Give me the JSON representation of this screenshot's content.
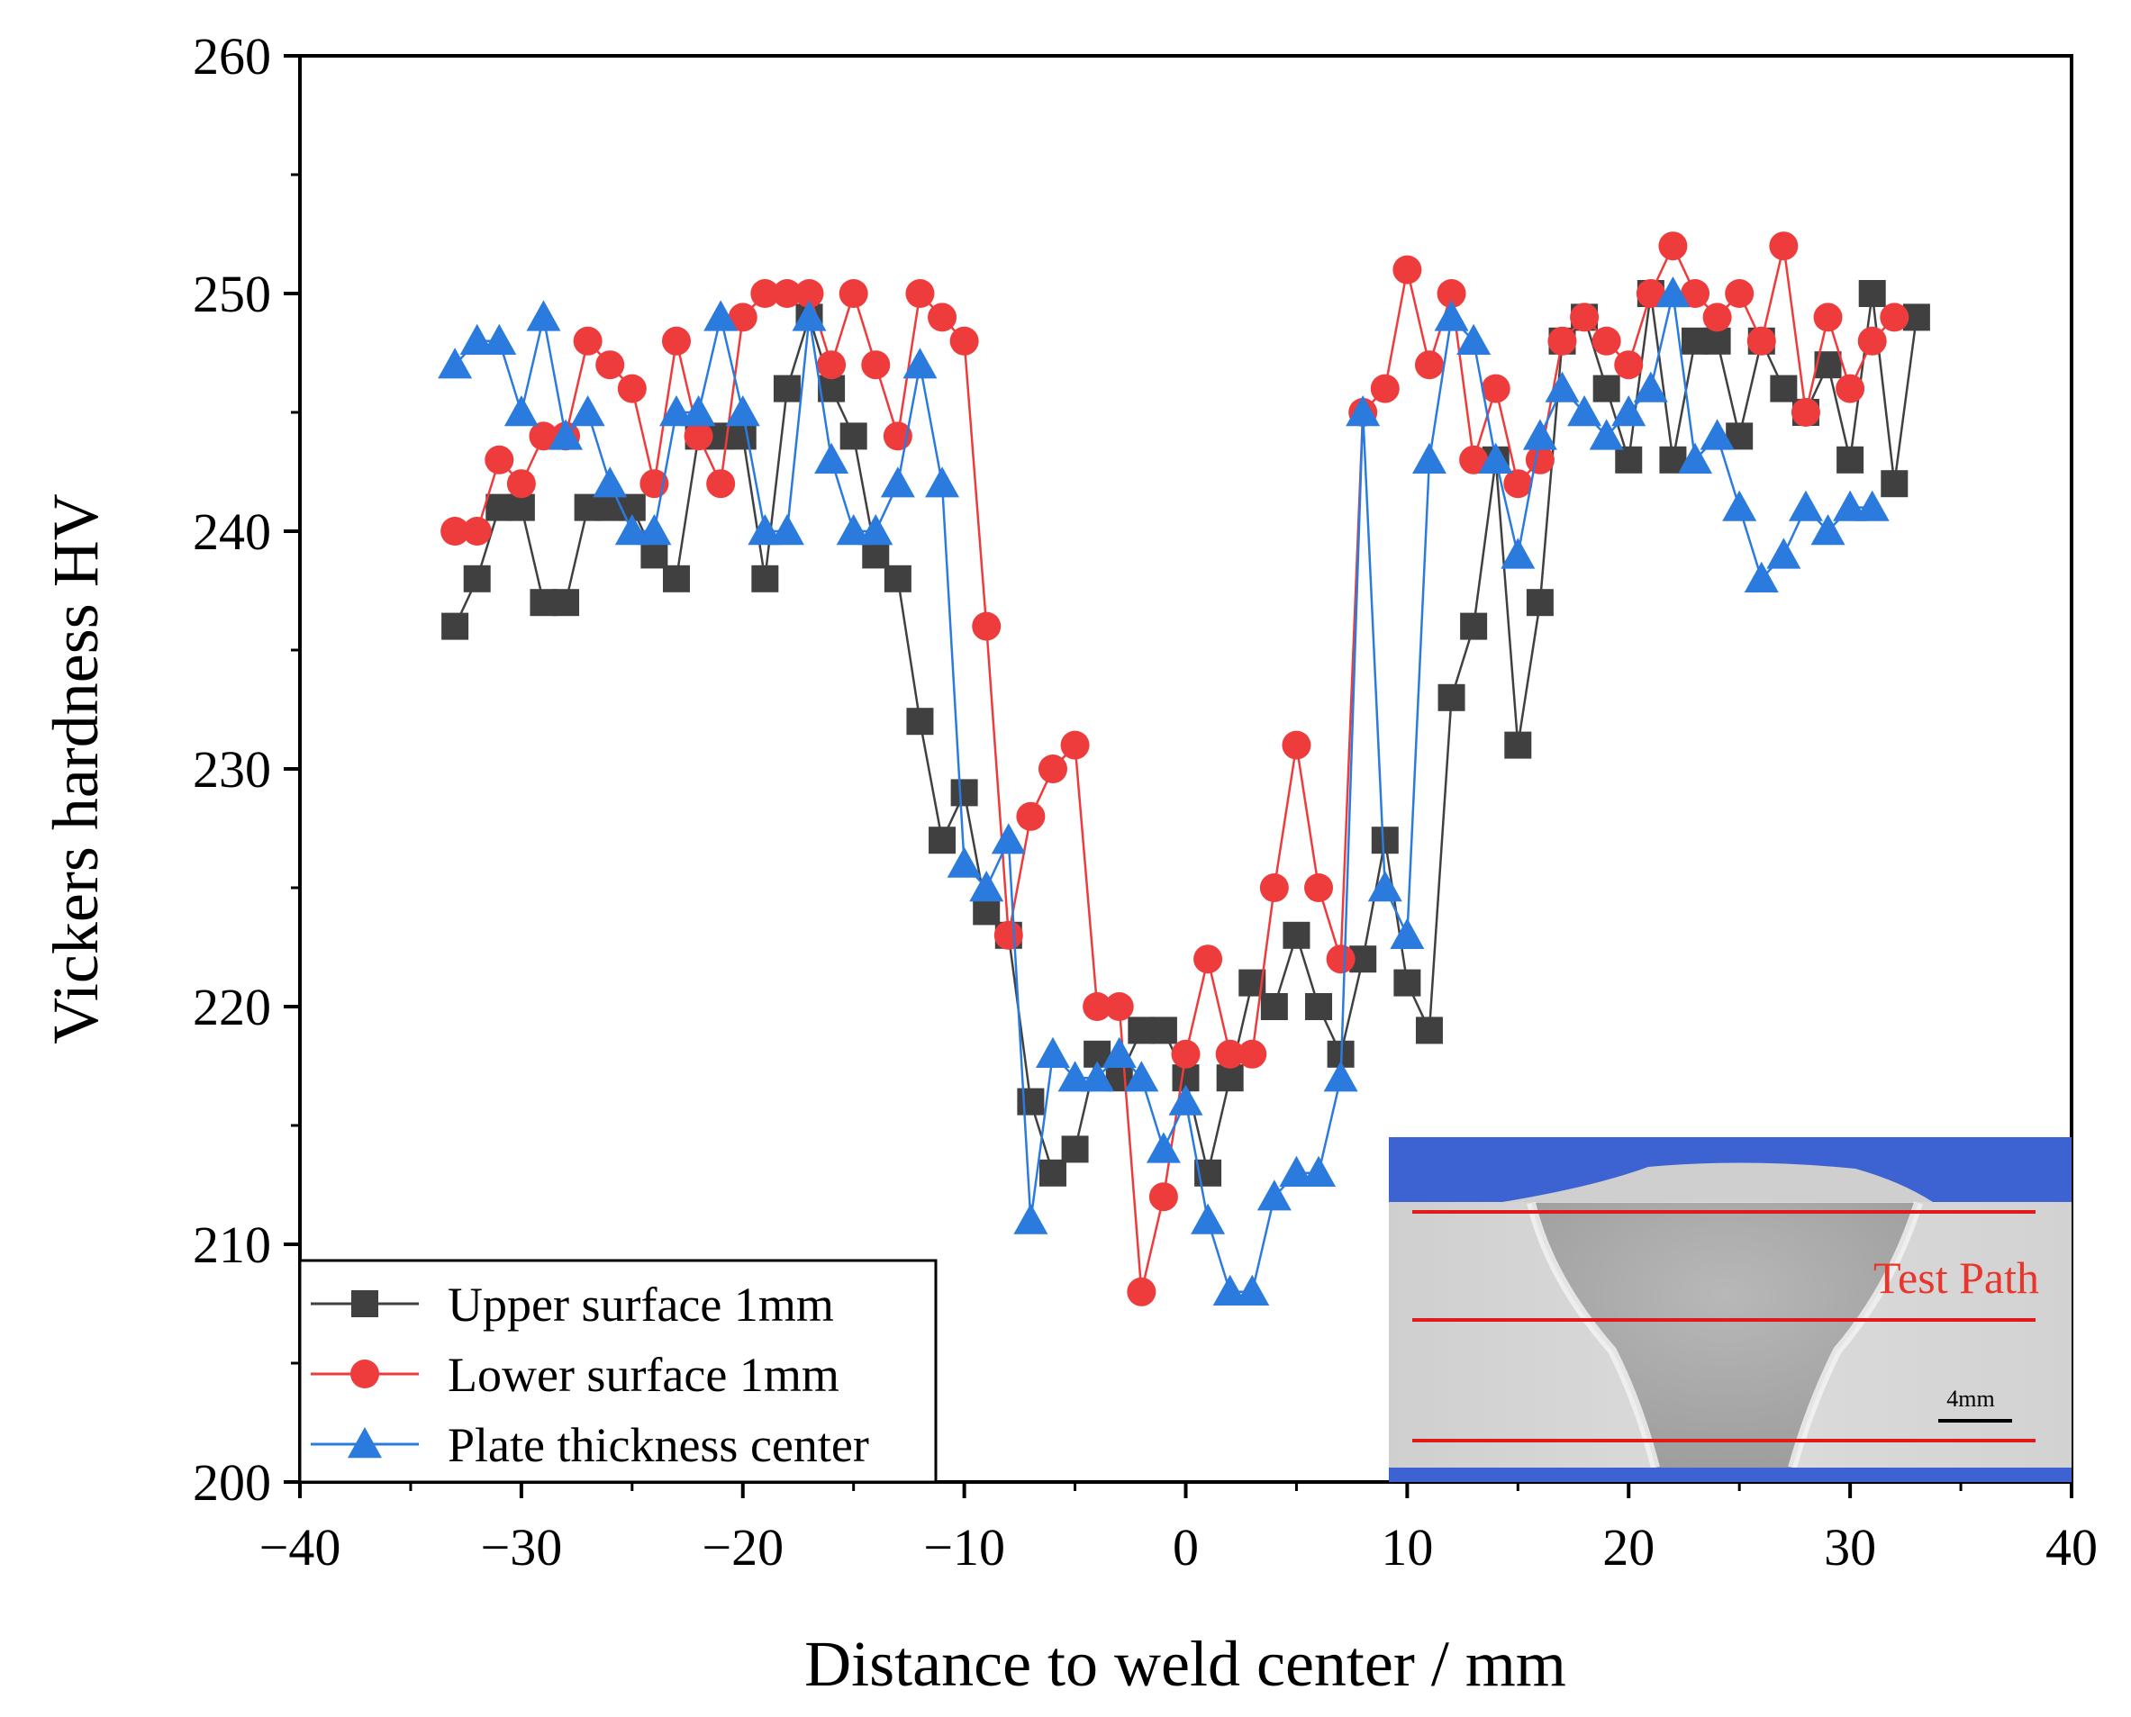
{
  "chart_data": {
    "type": "line",
    "xlabel": "Distance to weld center / mm",
    "ylabel": "Vickers hardness HV",
    "xlim": [
      -40,
      40
    ],
    "ylim": [
      200,
      260
    ],
    "xticks": [
      -40,
      -30,
      -20,
      -10,
      0,
      10,
      20,
      30,
      40
    ],
    "yticks": [
      200,
      210,
      220,
      230,
      240,
      250,
      260
    ],
    "xtick_labels": [
      "−40",
      "−30",
      "−20",
      "−10",
      "0",
      "10",
      "20",
      "30",
      "40"
    ],
    "ytick_labels": [
      "200",
      "210",
      "220",
      "230",
      "240",
      "250",
      "260"
    ],
    "grid": false,
    "legend_position": "bottom-left",
    "series": [
      {
        "name": "Upper surface 1mm",
        "color": "#404040",
        "marker": "square",
        "x": [
          -33,
          -32,
          -31,
          -30,
          -29,
          -28,
          -27,
          -26,
          -25,
          -24,
          -23,
          -22,
          -21,
          -20,
          -19,
          -18,
          -17,
          -16,
          -15,
          -14,
          -13,
          -12,
          -11,
          -10,
          -9,
          -8,
          -7,
          -6,
          -5,
          -4,
          -3,
          -2,
          -1,
          0,
          1,
          2,
          3,
          4,
          5,
          6,
          7,
          8,
          9,
          10,
          11,
          12,
          13,
          14,
          15,
          16,
          17,
          18,
          19,
          20,
          21,
          22,
          23,
          24,
          25,
          26,
          27,
          28,
          29,
          30,
          31,
          32,
          33
        ],
        "y": [
          236,
          238,
          241,
          241,
          237,
          237,
          241,
          241,
          241,
          239,
          238,
          244,
          244,
          244,
          238,
          246,
          249,
          246,
          244,
          239,
          238,
          232,
          227,
          229,
          224,
          223,
          216,
          213,
          214,
          218,
          217,
          219,
          219,
          217,
          213,
          217,
          221,
          220,
          223,
          220,
          218,
          222,
          227,
          221,
          219,
          233,
          236,
          243,
          231,
          237,
          248,
          249,
          246,
          243,
          250,
          243,
          248,
          248,
          244,
          248,
          246,
          245,
          247,
          243,
          250,
          242,
          249
        ]
      },
      {
        "name": "Lower surface 1mm",
        "color": "#ee3b3b",
        "marker": "circle",
        "x": [
          -33,
          -32,
          -31,
          -30,
          -29,
          -28,
          -27,
          -26,
          -25,
          -24,
          -23,
          -22,
          -21,
          -20,
          -19,
          -18,
          -17,
          -16,
          -15,
          -14,
          -13,
          -12,
          -11,
          -10,
          -9,
          -8,
          -7,
          -6,
          -5,
          -4,
          -3,
          -2,
          -1,
          0,
          1,
          2,
          3,
          4,
          5,
          6,
          7,
          8,
          9,
          10,
          11,
          12,
          13,
          14,
          15,
          16,
          17,
          18,
          19,
          20,
          21,
          22,
          23,
          24,
          25,
          26,
          27,
          28,
          29,
          30,
          31,
          32
        ],
        "y": [
          240,
          240,
          243,
          242,
          244,
          244,
          248,
          247,
          246,
          242,
          248,
          244,
          242,
          249,
          250,
          250,
          250,
          247,
          250,
          247,
          244,
          250,
          249,
          248,
          236,
          223,
          228,
          230,
          231,
          220,
          220,
          208,
          212,
          218,
          222,
          218,
          218,
          225,
          231,
          225,
          222,
          245,
          246,
          251,
          247,
          250,
          243,
          246,
          242,
          243,
          248,
          249,
          248,
          247,
          250,
          252,
          250,
          249,
          250,
          248,
          252,
          245,
          249,
          246,
          248,
          249
        ]
      },
      {
        "name": "Plate thickness center",
        "color": "#2b7bde",
        "marker": "triangle",
        "x": [
          -33,
          -32,
          -31,
          -30,
          -29,
          -28,
          -27,
          -26,
          -25,
          -24,
          -23,
          -22,
          -21,
          -20,
          -19,
          -18,
          -17,
          -16,
          -15,
          -14,
          -13,
          -12,
          -11,
          -10,
          -9,
          -8,
          -7,
          -6,
          -5,
          -4,
          -3,
          -2,
          -1,
          0,
          1,
          2,
          3,
          4,
          5,
          6,
          7,
          8,
          9,
          10,
          11,
          12,
          13,
          14,
          15,
          16,
          17,
          18,
          19,
          20,
          21,
          22,
          23,
          24,
          25,
          26,
          27,
          28,
          29,
          30,
          31
        ],
        "y": [
          247,
          248,
          248,
          245,
          249,
          244,
          245,
          242,
          240,
          240,
          245,
          245,
          249,
          245,
          240,
          240,
          249,
          243,
          240,
          240,
          242,
          247,
          242,
          226,
          225,
          227,
          211,
          218,
          217,
          217,
          218,
          217,
          214,
          216,
          211,
          208,
          208,
          212,
          213,
          213,
          217,
          245,
          225,
          223,
          243,
          249,
          248,
          243,
          239,
          244,
          246,
          245,
          244,
          245,
          246,
          250,
          243,
          244,
          241,
          238,
          239,
          241,
          240,
          241,
          241
        ]
      }
    ],
    "inset": {
      "label": "Test Path",
      "scale_label": "4mm"
    }
  }
}
